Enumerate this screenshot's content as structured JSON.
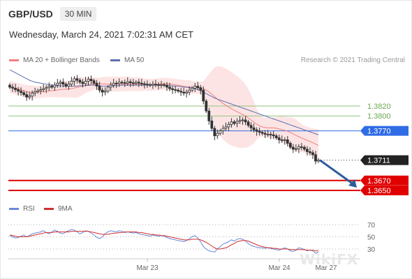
{
  "header": {
    "symbol": "GBP/USD",
    "timeframe": "30 MIN"
  },
  "date": "Wednesday, March 24, 2021 7:02:31 AM CET",
  "source": "Research © 2021 Trading Central",
  "legend": {
    "ma20_label": "MA 20 + Bollinger Bands",
    "ma50_label": "MA 50",
    "rsi_label": "RSI",
    "ma9_label": "9MA"
  },
  "colors": {
    "ma20": "#f08080",
    "band_fill": "#fde4e4",
    "ma50": "#5b6fb0",
    "candle": "#333333",
    "support": "#e00000",
    "resistance": "#2f6ce6",
    "target_green": "#92c27a",
    "arrow": "#2b5c9c",
    "rsi": "#6a8ad8",
    "rsi_ma": "#d03030"
  },
  "chart_data": {
    "type": "candlestick",
    "x_ticks": [
      "Mar 23",
      "Mar 24",
      "Mar 27"
    ],
    "y_range": [
      1.363,
      1.39
    ],
    "levels": [
      {
        "label": "1.3820",
        "value": 1.382,
        "kind": "target"
      },
      {
        "label": "1.3800",
        "value": 1.38,
        "kind": "target"
      },
      {
        "label": "1.3770",
        "value": 1.377,
        "kind": "resistance"
      },
      {
        "label": "1.3711",
        "value": 1.3711,
        "kind": "last"
      },
      {
        "label": "1.3670",
        "value": 1.367,
        "kind": "support"
      },
      {
        "label": "1.3650",
        "value": 1.365,
        "kind": "support"
      }
    ],
    "closes": [
      1.3858,
      1.3856,
      1.3853,
      1.385,
      1.3847,
      1.3843,
      1.3838,
      1.384,
      1.3846,
      1.3849,
      1.3851,
      1.3853,
      1.3855,
      1.3857,
      1.386,
      1.3858,
      1.3862,
      1.3866,
      1.3868,
      1.3864,
      1.386,
      1.3864,
      1.387,
      1.3875,
      1.3872,
      1.3868,
      1.3865,
      1.387,
      1.3874,
      1.3871,
      1.3866,
      1.386,
      1.3852,
      1.3848,
      1.385,
      1.3858,
      1.3862,
      1.3866,
      1.3865,
      1.3868,
      1.3867,
      1.3866,
      1.3869,
      1.3867,
      1.3866,
      1.3868,
      1.3866,
      1.3865,
      1.3864,
      1.3863,
      1.3862,
      1.3864,
      1.3863,
      1.3862,
      1.3863,
      1.3862,
      1.3858,
      1.3855,
      1.3853,
      1.3852,
      1.385,
      1.3848,
      1.3846,
      1.3848,
      1.3852,
      1.3856,
      1.386,
      1.3857,
      1.3852,
      1.383,
      1.381,
      1.379,
      1.3775,
      1.376,
      1.3765,
      1.377,
      1.3775,
      1.3778,
      1.3783,
      1.3788,
      1.3785,
      1.3789,
      1.3791,
      1.3792,
      1.3788,
      1.3781,
      1.3776,
      1.3772,
      1.3769,
      1.3767,
      1.3765,
      1.3763,
      1.3763,
      1.3762,
      1.376,
      1.3756,
      1.3752,
      1.3751,
      1.3752,
      1.3745,
      1.3737,
      1.3733,
      1.3734,
      1.3738,
      1.3737,
      1.3733,
      1.3728,
      1.3726,
      1.3722,
      1.3709,
      1.3711
    ],
    "ma50": [
      1.3893,
      1.389,
      1.3887,
      1.3884,
      1.3881,
      1.3878,
      1.3875,
      1.3872,
      1.387,
      1.3868,
      1.3867,
      1.3866,
      1.3865,
      1.3864,
      1.3863,
      1.3862,
      1.3862,
      1.3861,
      1.3861,
      1.386,
      1.386,
      1.386,
      1.386,
      1.386,
      1.386,
      1.3861,
      1.3861,
      1.3861,
      1.3862,
      1.3862,
      1.3862,
      1.3862,
      1.3861,
      1.386,
      1.386,
      1.386,
      1.386,
      1.3861,
      1.3861,
      1.3861,
      1.3862,
      1.3862,
      1.3862,
      1.3862,
      1.3862,
      1.3862,
      1.3862,
      1.3862,
      1.3862,
      1.3862,
      1.3862,
      1.3862,
      1.3862,
      1.3862,
      1.3862,
      1.3862,
      1.3861,
      1.3861,
      1.3861,
      1.386,
      1.386,
      1.3859,
      1.3858,
      1.3858,
      1.3857,
      1.3856,
      1.3855,
      1.3853,
      1.3851,
      1.3848,
      1.3845,
      1.3842,
      1.3839,
      1.3836,
      1.3834,
      1.3832,
      1.383,
      1.3828,
      1.3826,
      1.3824,
      1.3822,
      1.382,
      1.3818,
      1.3816,
      1.3814,
      1.3812,
      1.381,
      1.3808,
      1.3806,
      1.3804,
      1.3802,
      1.38,
      1.3798,
      1.3796,
      1.3794,
      1.3792,
      1.379,
      1.3788,
      1.3786,
      1.3784,
      1.3782,
      1.378,
      1.3778,
      1.3776,
      1.3774,
      1.3772,
      1.377,
      1.3768,
      1.3766,
      1.3764,
      1.3762
    ],
    "rsi_axis": {
      "ticks": [
        70,
        50,
        30
      ],
      "range": [
        20,
        80
      ]
    },
    "rsi": [
      52,
      50,
      48,
      49,
      51,
      53,
      50,
      52,
      55,
      56,
      57,
      58,
      60,
      57,
      55,
      58,
      61,
      59,
      56,
      55,
      58,
      60,
      62,
      61,
      58,
      55,
      57,
      60,
      59,
      56,
      53,
      49,
      47,
      50,
      55,
      58,
      60,
      59,
      58,
      60,
      59,
      57,
      58,
      57,
      56,
      57,
      55,
      54,
      53,
      52,
      51,
      53,
      52,
      51,
      52,
      51,
      49,
      47,
      46,
      45,
      44,
      43,
      42,
      44,
      47,
      50,
      52,
      48,
      42,
      34,
      30,
      27,
      26,
      25,
      30,
      34,
      38,
      40,
      42,
      45,
      43,
      46,
      47,
      46,
      43,
      39,
      36,
      34,
      33,
      32,
      32,
      31,
      32,
      31,
      30,
      29,
      28,
      30,
      32,
      30,
      27,
      26,
      28,
      32,
      31,
      29,
      27,
      28,
      27,
      23,
      25
    ],
    "rsi_ma": [
      53,
      52,
      51,
      50,
      50,
      50,
      50,
      51,
      52,
      53,
      54,
      55,
      56,
      57,
      57,
      57,
      58,
      58,
      58,
      58,
      58,
      58,
      59,
      59,
      59,
      59,
      59,
      59,
      59,
      58,
      57,
      56,
      55,
      54,
      54,
      54,
      55,
      56,
      56,
      57,
      57,
      58,
      58,
      58,
      58,
      58,
      57,
      57,
      56,
      55,
      54,
      54,
      53,
      53,
      52,
      52,
      51,
      50,
      49,
      48,
      47,
      46,
      45,
      45,
      45,
      46,
      46,
      46,
      45,
      43,
      41,
      38,
      35,
      32,
      30,
      30,
      31,
      32,
      34,
      37,
      39,
      42,
      43,
      44,
      44,
      43,
      41,
      39,
      37,
      35,
      34,
      33,
      32,
      32,
      31,
      31,
      30,
      30,
      30,
      30,
      29,
      29,
      29,
      29,
      29,
      29,
      28,
      28,
      28,
      27,
      27
    ]
  },
  "watermark": "WikiFX"
}
